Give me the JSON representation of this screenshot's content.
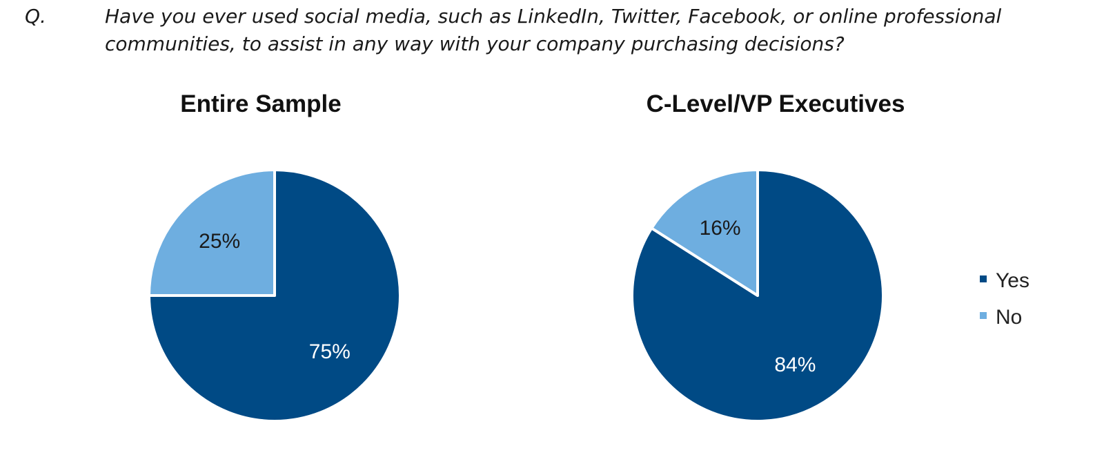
{
  "question": {
    "marker": "Q.",
    "text": "Have you ever used social media, such as LinkedIn, Twitter, Facebook, or online professional communities, to assist in any way with your company purchasing decisions?"
  },
  "legend": [
    {
      "label": "Yes",
      "color": "#004a85"
    },
    {
      "label": "No",
      "color": "#6eaee0"
    }
  ],
  "chart_data": [
    {
      "type": "pie",
      "title": "Entire Sample",
      "slices": [
        {
          "name": "Yes",
          "value": 75,
          "label": "75%",
          "color": "#004a85"
        },
        {
          "name": "No",
          "value": 25,
          "label": "25%",
          "color": "#6eaee0"
        }
      ],
      "legend_position": "right"
    },
    {
      "type": "pie",
      "title": "C-Level/VP Executives",
      "slices": [
        {
          "name": "Yes",
          "value": 84,
          "label": "84%",
          "color": "#004a85"
        },
        {
          "name": "No",
          "value": 16,
          "label": "16%",
          "color": "#6eaee0"
        }
      ],
      "legend_position": "right"
    }
  ]
}
